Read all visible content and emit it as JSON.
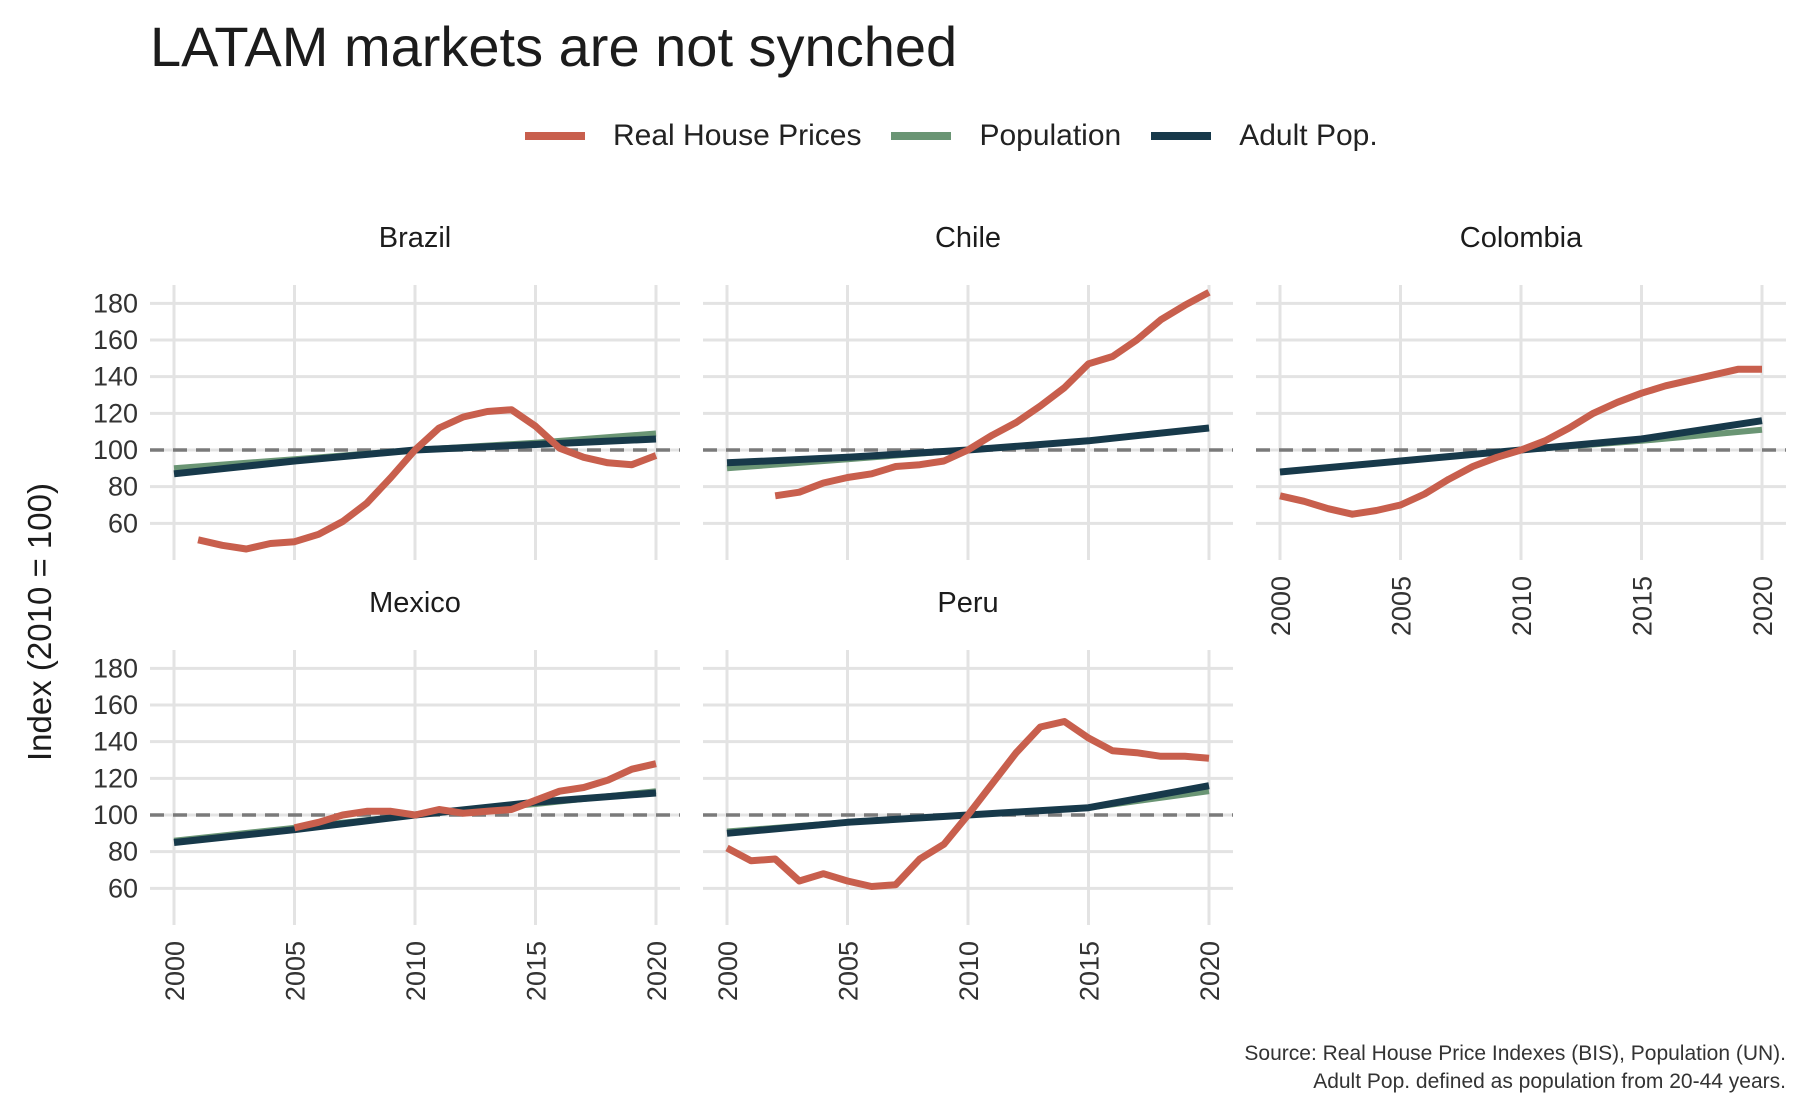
{
  "title": "LATAM markets are not synched",
  "legend": [
    {
      "label": "Real House Prices",
      "color": "#c85f4d"
    },
    {
      "label": "Population",
      "color": "#6a9574"
    },
    {
      "label": "Adult Pop.",
      "color": "#17394a"
    }
  ],
  "ylabel": "Index (2010 = 100)",
  "caption": {
    "line1": "Source: Real House Price Indexes (BIS), Population (UN).",
    "line2": "Adult Pop. defined as population from 20-44 years."
  },
  "chart_data": {
    "type": "line",
    "title": "LATAM markets are not synched",
    "xlabel": "",
    "ylabel": "Index (2010 = 100)",
    "xlim": [
      2000,
      2020
    ],
    "ylim": [
      40,
      190
    ],
    "x_ticks": [
      2000,
      2005,
      2010,
      2015,
      2020
    ],
    "y_ticks": [
      60,
      80,
      100,
      120,
      140,
      160,
      180
    ],
    "reference_line": 100,
    "grid": true,
    "legend_position": "top",
    "panels": [
      {
        "name": "Brazil",
        "series": [
          {
            "name": "Real House Prices",
            "x": [
              2001,
              2002,
              2003,
              2004,
              2005,
              2006,
              2007,
              2008,
              2009,
              2010,
              2011,
              2012,
              2013,
              2014,
              2015,
              2016,
              2017,
              2018,
              2019,
              2020
            ],
            "values": [
              51,
              48,
              46,
              49,
              50,
              54,
              61,
              71,
              85,
              100,
              112,
              118,
              121,
              122,
              113,
              101,
              96,
              93,
              92,
              97
            ]
          },
          {
            "name": "Population",
            "x": [
              2000,
              2005,
              2010,
              2015,
              2020
            ],
            "values": [
              90,
              95,
              100,
              104,
              109
            ]
          },
          {
            "name": "Adult Pop.",
            "x": [
              2000,
              2005,
              2010,
              2015,
              2020
            ],
            "values": [
              87,
              94,
              100,
              103,
              106
            ]
          }
        ]
      },
      {
        "name": "Chile",
        "series": [
          {
            "name": "Real House Prices",
            "x": [
              2002,
              2003,
              2004,
              2005,
              2006,
              2007,
              2008,
              2009,
              2010,
              2011,
              2012,
              2013,
              2014,
              2015,
              2016,
              2017,
              2018,
              2019,
              2020
            ],
            "values": [
              75,
              77,
              82,
              85,
              87,
              91,
              92,
              94,
              100,
              108,
              115,
              124,
              134,
              147,
              151,
              160,
              171,
              179,
              186
            ]
          },
          {
            "name": "Population",
            "x": [
              2000,
              2005,
              2010,
              2015,
              2020
            ],
            "values": [
              90,
              95,
              100,
              105,
              112
            ]
          },
          {
            "name": "Adult Pop.",
            "x": [
              2000,
              2005,
              2010,
              2015,
              2020
            ],
            "values": [
              93,
              96,
              100,
              105,
              112
            ]
          }
        ]
      },
      {
        "name": "Colombia",
        "series": [
          {
            "name": "Real House Prices",
            "x": [
              2000,
              2001,
              2002,
              2003,
              2004,
              2005,
              2006,
              2007,
              2008,
              2009,
              2010,
              2011,
              2012,
              2013,
              2014,
              2015,
              2016,
              2017,
              2018,
              2019,
              2020
            ],
            "values": [
              75,
              72,
              68,
              65,
              67,
              70,
              76,
              84,
              91,
              96,
              100,
              105,
              112,
              120,
              126,
              131,
              135,
              138,
              141,
              144,
              144
            ]
          },
          {
            "name": "Population",
            "x": [
              2000,
              2005,
              2010,
              2015,
              2020
            ],
            "values": [
              88,
              94,
              100,
              105,
              111
            ]
          },
          {
            "name": "Adult Pop.",
            "x": [
              2000,
              2005,
              2010,
              2015,
              2020
            ],
            "values": [
              88,
              94,
              100,
              106,
              116
            ]
          }
        ]
      },
      {
        "name": "Mexico",
        "series": [
          {
            "name": "Real House Prices",
            "x": [
              2005,
              2006,
              2007,
              2008,
              2009,
              2010,
              2011,
              2012,
              2013,
              2014,
              2015,
              2016,
              2017,
              2018,
              2019,
              2020
            ],
            "values": [
              93,
              96,
              100,
              102,
              102,
              100,
              103,
              101,
              102,
              103,
              108,
              113,
              115,
              119,
              125,
              128
            ]
          },
          {
            "name": "Population",
            "x": [
              2000,
              2005,
              2010,
              2015,
              2020
            ],
            "values": [
              86,
              93,
              100,
              106,
              113
            ]
          },
          {
            "name": "Adult Pop.",
            "x": [
              2000,
              2005,
              2010,
              2015,
              2020
            ],
            "values": [
              85,
              92,
              100,
              107,
              112
            ]
          }
        ]
      },
      {
        "name": "Peru",
        "series": [
          {
            "name": "Real House Prices",
            "x": [
              2000,
              2001,
              2002,
              2003,
              2004,
              2005,
              2006,
              2007,
              2008,
              2009,
              2010,
              2011,
              2012,
              2013,
              2014,
              2015,
              2016,
              2017,
              2018,
              2019,
              2020
            ],
            "values": [
              82,
              75,
              76,
              64,
              68,
              64,
              61,
              62,
              76,
              84,
              100,
              117,
              134,
              148,
              151,
              142,
              135,
              134,
              132,
              132,
              131
            ]
          },
          {
            "name": "Population",
            "x": [
              2000,
              2005,
              2010,
              2015,
              2020
            ],
            "values": [
              91,
              96,
              100,
              104,
              113
            ]
          },
          {
            "name": "Adult Pop.",
            "x": [
              2000,
              2005,
              2010,
              2015,
              2020
            ],
            "values": [
              90,
              96,
              100,
              104,
              116
            ]
          }
        ]
      }
    ]
  }
}
